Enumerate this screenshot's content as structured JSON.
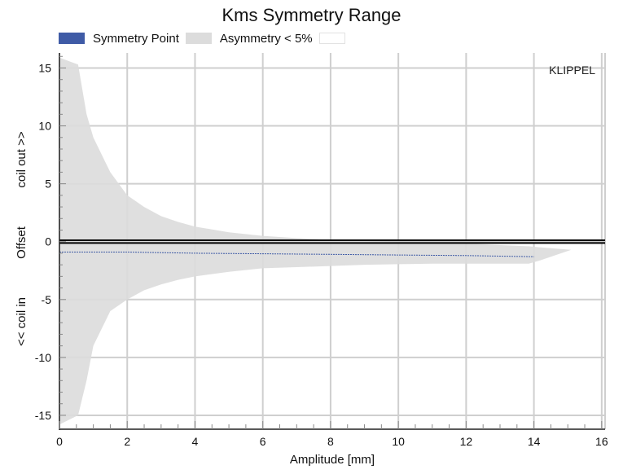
{
  "chart_data": {
    "type": "area",
    "title": "Kms Symmetry Range",
    "watermark": "KLIPPEL",
    "xlabel": "Amplitude [mm]",
    "ylabel": {
      "top": "coil out >>",
      "middle": "Offset",
      "bottom": "<< coil in"
    },
    "xlim": [
      0,
      16.1
    ],
    "ylim": [
      -16.2,
      16.3
    ],
    "x_ticks": [
      0,
      2,
      4,
      6,
      8,
      10,
      12,
      14,
      16
    ],
    "y_ticks": [
      -15,
      -10,
      -5,
      0,
      5,
      10,
      15
    ],
    "grid": true,
    "legend": {
      "position": "top-left",
      "entries": [
        {
          "label": "Symmetry Point",
          "color": "#3f5ba6"
        },
        {
          "label": "Asymmetry < 5%",
          "color": "#dcdcdc"
        },
        {
          "label": "",
          "color": "#ffffff"
        }
      ]
    },
    "series": [
      {
        "name": "Asymmetry < 5%",
        "kind": "band",
        "color": "#dcdcdc",
        "x": [
          0,
          0.55,
          0.8,
          1.0,
          1.5,
          2.0,
          2.5,
          3.0,
          3.5,
          4.0,
          5.0,
          6.0,
          7.0,
          8.0,
          9.0,
          10.0,
          11.0,
          12.0,
          13.0,
          13.85,
          14.2,
          15.1
        ],
        "upper": [
          15.9,
          15.3,
          11.0,
          9.0,
          6.0,
          4.0,
          3.0,
          2.2,
          1.7,
          1.3,
          0.8,
          0.5,
          0.3,
          0.15,
          0.05,
          -0.05,
          -0.1,
          -0.15,
          -0.3,
          -0.4,
          -0.5,
          -0.7
        ],
        "lower": [
          -15.8,
          -15.0,
          -12.0,
          -9.0,
          -6.0,
          -5.0,
          -4.2,
          -3.7,
          -3.3,
          -3.0,
          -2.6,
          -2.3,
          -2.2,
          -2.1,
          -2.0,
          -1.95,
          -1.9,
          -1.9,
          -1.9,
          -1.9,
          -1.6,
          -0.7
        ]
      },
      {
        "name": "Symmetry Point",
        "kind": "line",
        "color": "#3f5ba6",
        "x": [
          0,
          2,
          4,
          6,
          8,
          10,
          12,
          14
        ],
        "y": [
          -0.9,
          -0.9,
          -1.0,
          -1.05,
          -1.1,
          -1.15,
          -1.2,
          -1.3
        ]
      }
    ],
    "reference_lines": [
      0.12,
      -0.12
    ]
  }
}
